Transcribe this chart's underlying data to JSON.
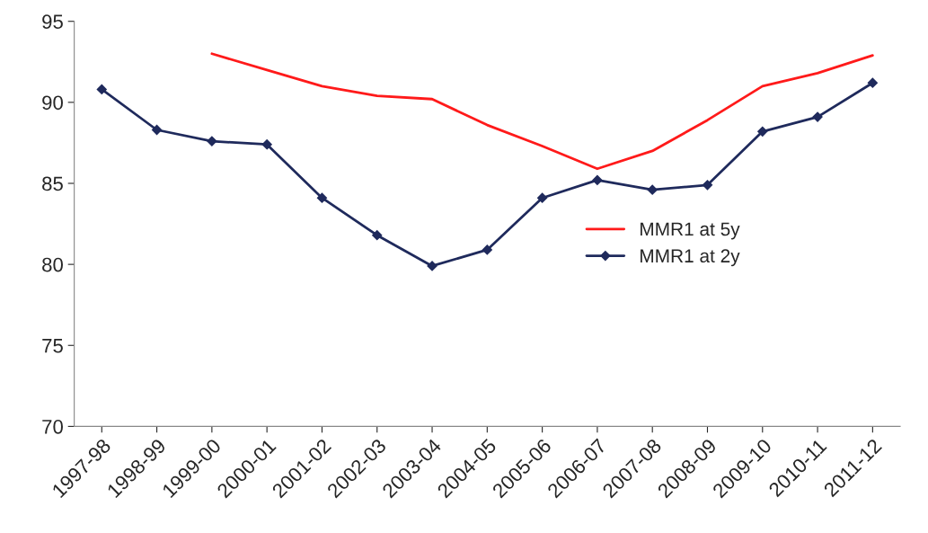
{
  "chart_data": {
    "type": "line",
    "categories": [
      "1997-98",
      "1998-99",
      "1999-00",
      "2000-01",
      "2001-02",
      "2002-03",
      "2003-04",
      "2004-05",
      "2005-06",
      "2006-07",
      "2007-08",
      "2008-09",
      "2009-10",
      "2010-11",
      "2011-12"
    ],
    "series": [
      {
        "name": "MMR1 at 5y",
        "color": "#ff1a1a",
        "marker": "none",
        "values": [
          null,
          null,
          93,
          92,
          91,
          90.4,
          90.2,
          88.6,
          87.3,
          85.9,
          87,
          88.9,
          91,
          91.8,
          92.9
        ]
      },
      {
        "name": "MMR1 at 2y",
        "color": "#1f2a5c",
        "marker": "diamond",
        "values": [
          90.8,
          88.3,
          87.6,
          87.4,
          84.1,
          81.8,
          79.9,
          80.9,
          84.1,
          85.2,
          84.6,
          84.9,
          88.2,
          89.1,
          91.2
        ]
      }
    ],
    "ylim": [
      70,
      95
    ],
    "yticks": [
      70,
      75,
      80,
      85,
      90,
      95
    ],
    "grid": false,
    "legend": "right"
  }
}
